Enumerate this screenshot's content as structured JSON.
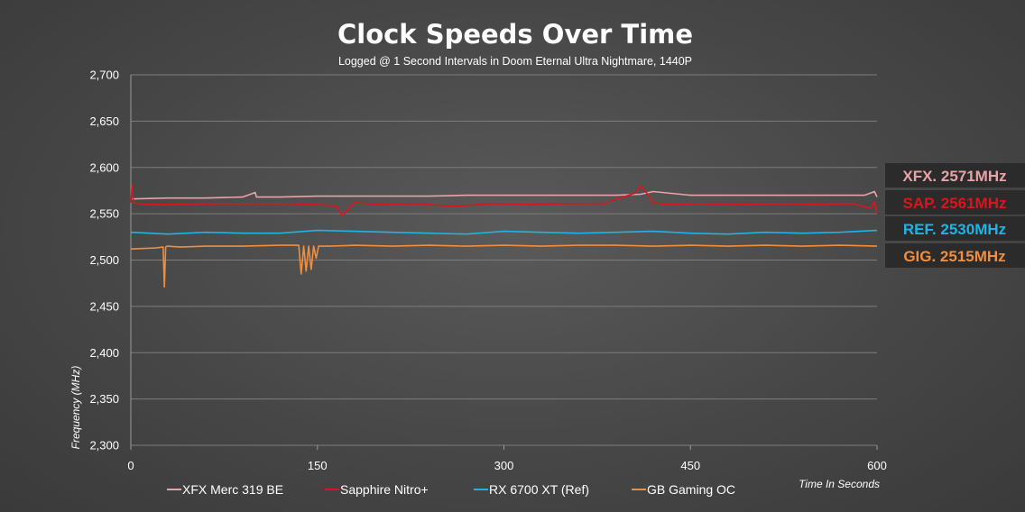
{
  "chart_data": {
    "type": "line",
    "title": "Clock Speeds Over Time",
    "subtitle": "Logged @ 1 Second Intervals in Doom Eternal Ultra Nightmare, 1440P",
    "xlabel": "Time In Seconds",
    "ylabel": "Frequency (MHz)",
    "xlim": [
      0,
      600
    ],
    "ylim": [
      2300,
      2700
    ],
    "x_ticks": [
      0,
      150,
      300,
      450,
      600
    ],
    "y_ticks": [
      2300,
      2350,
      2400,
      2450,
      2500,
      2550,
      2600,
      2650,
      2700
    ],
    "x_tick_labels": [
      "0",
      "150",
      "300",
      "450",
      "600"
    ],
    "y_tick_labels": [
      "2,300",
      "2,350",
      "2,400",
      "2,450",
      "2,500",
      "2,550",
      "2,600",
      "2,650",
      "2,700"
    ],
    "grid": "horizontal",
    "legend_position": "bottom",
    "series": [
      {
        "name": "XFX Merc 319 BE",
        "color": "#e8a2a8",
        "x": [
          0,
          30,
          60,
          90,
          100,
          101,
          120,
          150,
          180,
          210,
          240,
          270,
          300,
          330,
          360,
          390,
          410,
          420,
          450,
          480,
          510,
          540,
          570,
          590,
          598,
          600
        ],
        "y": [
          2566,
          2567,
          2567,
          2568,
          2573,
          2568,
          2568,
          2569,
          2569,
          2569,
          2569,
          2570,
          2570,
          2570,
          2570,
          2570,
          2571,
          2574,
          2570,
          2570,
          2570,
          2570,
          2570,
          2570,
          2574,
          2568
        ]
      },
      {
        "name": "Sapphire Nitro+",
        "color": "#d9161e",
        "x": [
          0,
          1,
          2,
          10,
          40,
          70,
          100,
          130,
          165,
          170,
          180,
          200,
          230,
          260,
          290,
          320,
          350,
          380,
          405,
          410,
          415,
          420,
          430,
          460,
          490,
          520,
          550,
          580,
          595,
          598,
          600
        ],
        "y": [
          2562,
          2581,
          2562,
          2560,
          2560,
          2561,
          2561,
          2561,
          2559,
          2548,
          2562,
          2560,
          2561,
          2558,
          2561,
          2560,
          2561,
          2561,
          2572,
          2580,
          2572,
          2562,
          2560,
          2561,
          2560,
          2561,
          2560,
          2561,
          2556,
          2563,
          2550
        ]
      },
      {
        "name": "RX 6700 XT (Ref)",
        "color": "#1fb3e6",
        "x": [
          0,
          30,
          60,
          90,
          120,
          150,
          180,
          210,
          240,
          270,
          300,
          330,
          360,
          390,
          420,
          450,
          480,
          510,
          540,
          570,
          600
        ],
        "y": [
          2530,
          2528,
          2530,
          2529,
          2529,
          2532,
          2531,
          2530,
          2529,
          2528,
          2531,
          2530,
          2529,
          2530,
          2531,
          2529,
          2528,
          2530,
          2529,
          2530,
          2532
        ]
      },
      {
        "name": "GB Gaming OC",
        "color": "#f08e3f",
        "x": [
          0,
          20,
          26,
          27,
          28,
          29,
          40,
          60,
          90,
          120,
          135,
          137,
          139,
          141,
          143,
          145,
          147,
          149,
          151,
          160,
          180,
          210,
          240,
          270,
          300,
          330,
          360,
          390,
          420,
          450,
          480,
          510,
          540,
          570,
          600
        ],
        "y": [
          2512,
          2513,
          2514,
          2471,
          2514,
          2515,
          2514,
          2515,
          2515,
          2516,
          2516,
          2485,
          2515,
          2488,
          2515,
          2490,
          2515,
          2502,
          2515,
          2515,
          2516,
          2515,
          2516,
          2515,
          2516,
          2515,
          2516,
          2516,
          2515,
          2516,
          2515,
          2516,
          2515,
          2516,
          2515
        ]
      }
    ],
    "badges": [
      {
        "label": "XFX. 2571MHz",
        "color": "#e8a2a8"
      },
      {
        "label": "SAP. 2561MHz",
        "color": "#d9161e"
      },
      {
        "label": "REF. 2530MHz",
        "color": "#1fb3e6"
      },
      {
        "label": "GIG. 2515MHz",
        "color": "#f08e3f"
      }
    ]
  }
}
